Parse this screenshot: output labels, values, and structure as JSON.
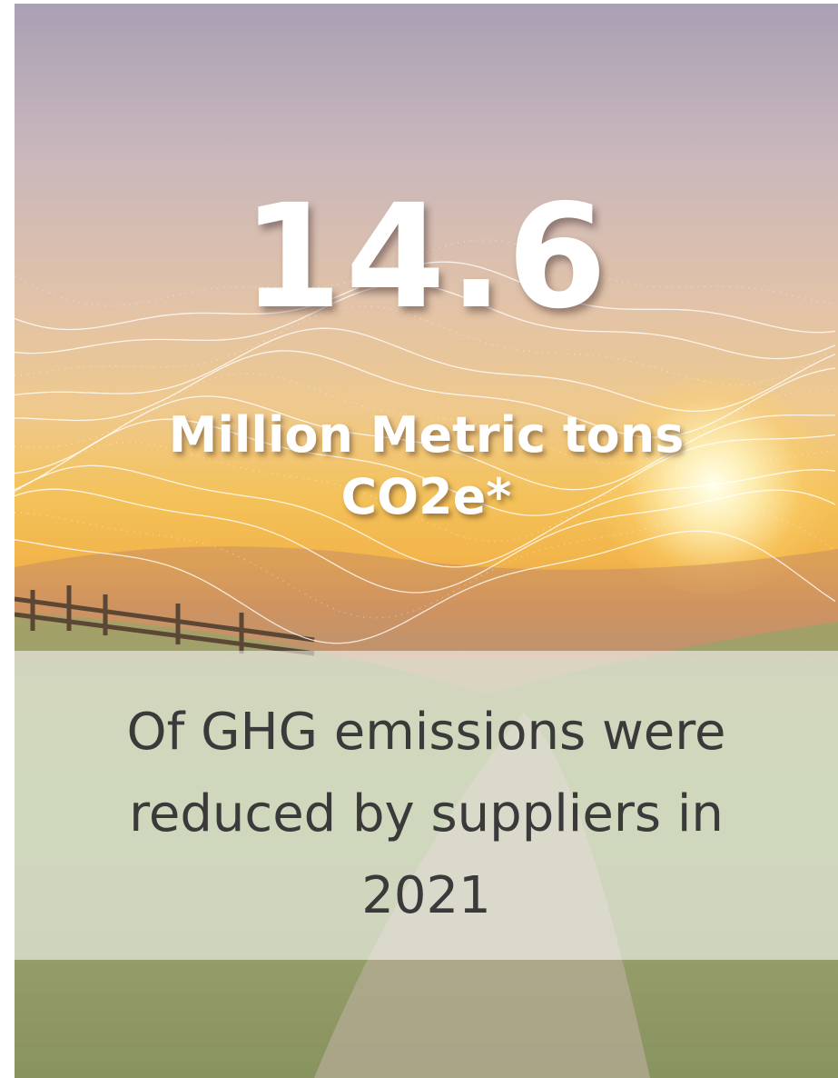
{
  "headline": {
    "figure": "14.6",
    "unit_lines": [
      "Million Metric tons",
      "CO2e*"
    ]
  },
  "caption": {
    "lines": [
      "Of GHG emissions were",
      "reduced by suppliers in",
      "2021"
    ]
  }
}
